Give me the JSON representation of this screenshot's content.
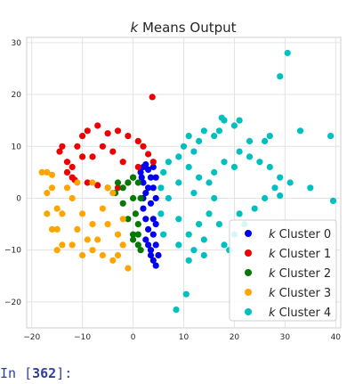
{
  "chart_data": {
    "type": "scatter",
    "title_italic": "k",
    "title_rest": " Means Output",
    "xlim": [
      -21,
      41
    ],
    "ylim": [
      -25,
      31
    ],
    "xticks": [
      -20,
      -10,
      0,
      10,
      20,
      30,
      40
    ],
    "yticks": [
      -20,
      -10,
      0,
      10,
      20,
      30
    ],
    "grid": true,
    "legend": "bottom-right",
    "series": [
      {
        "name": "Cluster 0",
        "color": "#0000ee",
        "points": [
          [
            1.5,
            5
          ],
          [
            2,
            6
          ],
          [
            2.5,
            6.5
          ],
          [
            2,
            3
          ],
          [
            2.5,
            1
          ],
          [
            2,
            -2
          ],
          [
            2.5,
            -4
          ],
          [
            3,
            -6
          ],
          [
            2.5,
            -8
          ],
          [
            3,
            -9
          ],
          [
            3.5,
            -10
          ],
          [
            4.5,
            -9
          ],
          [
            5,
            -11
          ],
          [
            4,
            -12
          ],
          [
            4.5,
            -13
          ],
          [
            3.5,
            -11
          ],
          [
            4,
            -7
          ],
          [
            4,
            -4
          ],
          [
            3.5,
            -1
          ],
          [
            4,
            2
          ],
          [
            3.5,
            4
          ],
          [
            3,
            5.5
          ],
          [
            4,
            6
          ],
          [
            4.5,
            4
          ],
          [
            4.5,
            0
          ],
          [
            4.5,
            -5
          ],
          [
            3,
            2
          ],
          [
            2,
            0
          ],
          [
            1.7,
            4
          ]
        ]
      },
      {
        "name": "Cluster 1",
        "color": "#ee0000",
        "points": [
          [
            3.8,
            19.5
          ],
          [
            -14,
            10
          ],
          [
            -14.5,
            9
          ],
          [
            -13,
            7
          ],
          [
            -12,
            6
          ],
          [
            -11,
            10
          ],
          [
            -10,
            12
          ],
          [
            -9,
            13
          ],
          [
            -7,
            14
          ],
          [
            -5,
            12.5
          ],
          [
            -3,
            13
          ],
          [
            -1,
            12
          ],
          [
            1,
            11
          ],
          [
            2,
            10
          ],
          [
            3,
            8.5
          ],
          [
            4,
            7
          ],
          [
            -12,
            4
          ],
          [
            -9,
            3
          ],
          [
            -7,
            2.5
          ],
          [
            -5,
            2
          ],
          [
            -3,
            2
          ],
          [
            -1,
            3
          ],
          [
            0,
            4
          ],
          [
            1,
            6
          ],
          [
            -8,
            8
          ],
          [
            -6,
            10
          ],
          [
            -4,
            9
          ],
          [
            -2,
            7
          ],
          [
            -10,
            8
          ],
          [
            -13,
            5
          ],
          [
            -11.5,
            3.5
          ]
        ]
      },
      {
        "name": "Cluster 2",
        "color": "#007a00",
        "points": [
          [
            -3,
            3
          ],
          [
            -2,
            -1
          ],
          [
            -1,
            -4
          ],
          [
            0,
            -7
          ],
          [
            1,
            -9
          ],
          [
            1.5,
            -10
          ],
          [
            1,
            -7
          ],
          [
            0.5,
            -3
          ],
          [
            0,
            0
          ],
          [
            -1,
            3
          ],
          [
            0,
            4
          ],
          [
            1,
            3
          ],
          [
            1.5,
            0
          ],
          [
            1,
            -5
          ],
          [
            -2,
            2
          ],
          [
            -3.5,
            1
          ],
          [
            0,
            -8
          ]
        ]
      },
      {
        "name": "Cluster 3",
        "color": "#ffa500",
        "points": [
          [
            -18,
            5
          ],
          [
            -17,
            5
          ],
          [
            -16,
            4.5
          ],
          [
            -17,
            1
          ],
          [
            -17,
            -3
          ],
          [
            -16,
            -6
          ],
          [
            -15,
            -2
          ],
          [
            -14,
            -9
          ],
          [
            -15,
            -10
          ],
          [
            -12,
            -9
          ],
          [
            -10,
            -11
          ],
          [
            -8,
            -10
          ],
          [
            -6,
            -11
          ],
          [
            -4,
            -12
          ],
          [
            -3,
            -11
          ],
          [
            -1,
            -13.5
          ],
          [
            -2,
            -9
          ],
          [
            -3,
            -7
          ],
          [
            -5,
            -5
          ],
          [
            -8,
            -5
          ],
          [
            -10,
            -3
          ],
          [
            -12,
            0
          ],
          [
            -13,
            2
          ],
          [
            -11,
            3
          ],
          [
            -8,
            3
          ],
          [
            -5,
            2
          ],
          [
            -4,
            1
          ],
          [
            -6,
            -2
          ],
          [
            -9,
            -8
          ],
          [
            -14,
            -3
          ],
          [
            -16,
            2
          ],
          [
            -15,
            -6
          ],
          [
            -11,
            -6
          ],
          [
            -7,
            -8
          ],
          [
            -2,
            -4
          ]
        ]
      },
      {
        "name": "Cluster 4",
        "color": "#00bfbf",
        "points": [
          [
            30.5,
            28
          ],
          [
            29,
            23.5
          ],
          [
            17.5,
            15.5
          ],
          [
            18,
            15
          ],
          [
            20,
            14
          ],
          [
            21,
            15
          ],
          [
            16,
            12
          ],
          [
            17,
            13
          ],
          [
            14,
            13
          ],
          [
            13,
            11
          ],
          [
            11,
            12
          ],
          [
            10,
            10
          ],
          [
            12,
            9
          ],
          [
            23,
            11
          ],
          [
            26,
            11
          ],
          [
            27,
            12
          ],
          [
            33,
            13
          ],
          [
            39,
            12
          ],
          [
            21,
            9
          ],
          [
            23,
            8
          ],
          [
            25,
            7
          ],
          [
            27,
            6
          ],
          [
            29,
            4
          ],
          [
            31,
            3
          ],
          [
            28,
            2
          ],
          [
            29,
            0.5
          ],
          [
            26,
            0
          ],
          [
            35,
            2
          ],
          [
            39.5,
            -0.5
          ],
          [
            24,
            -2
          ],
          [
            21,
            -3
          ],
          [
            22,
            -5
          ],
          [
            20,
            -7
          ],
          [
            19,
            -10
          ],
          [
            18,
            -9
          ],
          [
            14,
            -11
          ],
          [
            12,
            -10
          ],
          [
            11,
            -12
          ],
          [
            10.5,
            -18.5
          ],
          [
            8.5,
            -21.5
          ],
          [
            9,
            -9
          ],
          [
            6,
            -7
          ],
          [
            5.5,
            -3
          ],
          [
            5.5,
            2
          ],
          [
            6,
            5
          ],
          [
            7,
            7
          ],
          [
            9,
            8
          ],
          [
            11,
            6
          ],
          [
            13,
            4
          ],
          [
            15,
            3
          ],
          [
            16,
            0
          ],
          [
            15,
            -3
          ],
          [
            13,
            -5
          ],
          [
            11,
            -7
          ],
          [
            9,
            -4
          ],
          [
            7,
            0
          ],
          [
            9,
            3
          ],
          [
            12,
            1
          ],
          [
            16,
            5
          ],
          [
            18,
            7
          ],
          [
            20,
            6
          ],
          [
            17,
            -5
          ],
          [
            14,
            -8
          ]
        ]
      }
    ]
  },
  "legend": {
    "items": [
      {
        "k": "k",
        "label": " Cluster 0",
        "color": "#0000ee"
      },
      {
        "k": "k",
        "label": " Cluster 1",
        "color": "#ee0000"
      },
      {
        "k": "k",
        "label": " Cluster 2",
        "color": "#007a00"
      },
      {
        "k": "k",
        "label": " Cluster 3",
        "color": "#ffa500"
      },
      {
        "k": "k",
        "label": " Cluster 4",
        "color": "#00bfbf"
      }
    ]
  },
  "cell": {
    "prompt_prefix": "In [",
    "prompt_number": "362",
    "prompt_suffix": "]:"
  }
}
